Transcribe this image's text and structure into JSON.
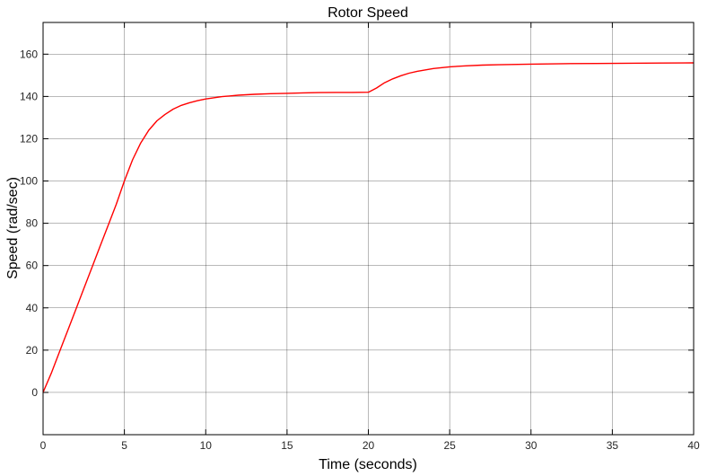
{
  "chart_data": {
    "type": "line",
    "title": "Rotor Speed",
    "xlabel": "Time (seconds)",
    "ylabel": "Speed (rad/sec)",
    "xlim": [
      0,
      40
    ],
    "ylim": [
      -20,
      175
    ],
    "xticks": [
      0,
      5,
      10,
      15,
      20,
      25,
      30,
      35,
      40
    ],
    "yticks": [
      0,
      20,
      40,
      60,
      80,
      100,
      120,
      140,
      160
    ],
    "grid": true,
    "legend": "none",
    "colors": {
      "line": "#ff0000",
      "grid": "#000000",
      "axes": "#000000"
    },
    "series": [
      {
        "x": [
          0,
          0.5,
          1,
          1.5,
          2,
          2.5,
          3,
          3.5,
          4,
          4.5,
          5,
          5.5,
          6,
          6.5,
          7,
          7.5,
          8,
          8.5,
          9,
          9.5,
          10,
          11,
          12,
          13,
          14,
          15,
          16,
          17,
          18,
          19,
          20,
          20.5,
          21,
          21.5,
          22,
          22.5,
          23,
          24,
          25,
          26,
          27,
          28,
          30,
          32,
          34,
          36,
          38,
          40
        ],
        "y": [
          0,
          9,
          19,
          29,
          39,
          49,
          59,
          69,
          79,
          89,
          100,
          110,
          118,
          124,
          128.5,
          131.5,
          134,
          135.8,
          137,
          138,
          138.8,
          139.9,
          140.6,
          141,
          141.3,
          141.5,
          141.7,
          141.8,
          141.9,
          141.9,
          142,
          144,
          146.5,
          148.3,
          149.8,
          151,
          151.9,
          153.2,
          154,
          154.5,
          154.8,
          155,
          155.3,
          155.5,
          155.6,
          155.7,
          155.8,
          155.9
        ]
      }
    ]
  }
}
